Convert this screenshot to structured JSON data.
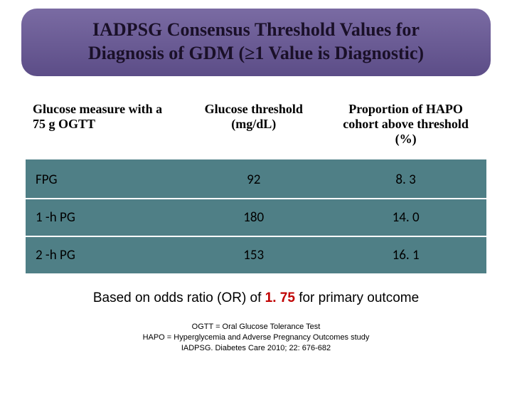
{
  "title": {
    "line1": "IADPSG Consensus Threshold Values for",
    "line2": "Diagnosis of GDM (≥1 Value is Diagnostic)"
  },
  "table": {
    "columns": [
      "Glucose measure with a 75 g OGTT",
      "Glucose threshold (mg/dL)",
      "Proportion of HAPO cohort above threshold (%)"
    ],
    "rows": [
      {
        "label": "FPG",
        "threshold": "92",
        "proportion": "8. 3"
      },
      {
        "label": "1 -h PG",
        "threshold": "180",
        "proportion": "14. 0"
      },
      {
        "label": "2 -h PG",
        "threshold": "153",
        "proportion": "16. 1"
      }
    ],
    "header_bg": "#ffffff",
    "header_border": "#4f7f86",
    "row_bg": "#4f7f86",
    "row_sep": "#ffffff",
    "header_font_family": "Times New Roman",
    "header_font_size_pt": 13,
    "cell_font_family": "Calibri",
    "cell_font_size_pt": 14
  },
  "caption": {
    "prefix": "Based on odds ratio (OR) of ",
    "odds": "1. 75",
    "suffix": " for primary outcome"
  },
  "footnote": {
    "line1": "OGTT = Oral Glucose Tolerance Test",
    "line2": "HAPO = Hyperglycemia and Adverse Pregnancy Outcomes study",
    "line3": "IADPSG. Diabetes Care 2010; 22: 676-682"
  },
  "colors": {
    "banner_bg": "#6b5b95",
    "banner_text": "#1a1028",
    "odds_ratio": "#c00000",
    "background": "#ffffff"
  }
}
